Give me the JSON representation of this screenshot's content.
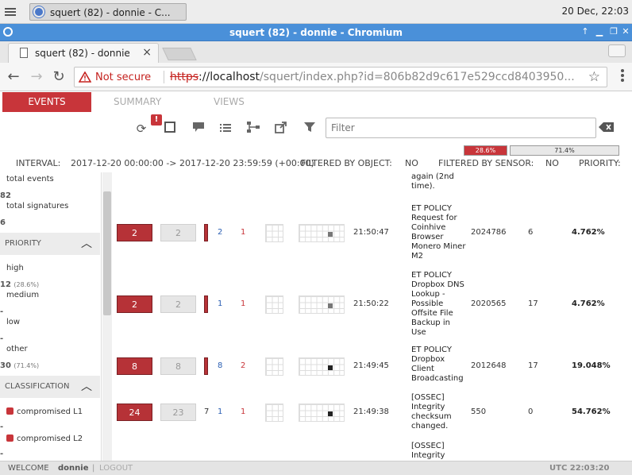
{
  "os": {
    "task_title": "squert (82) - donnie - C...",
    "clock": "20 Dec, 22:03"
  },
  "window": {
    "title": "squert (82) - donnie - Chromium"
  },
  "browser": {
    "tab_title": "squert (82) - donnie",
    "security": "Not secure",
    "url_scheme": "https",
    "url_host": "://localhost",
    "url_path": "/squert/index.php?id=806b82d9c617e529ccd8403950..."
  },
  "app": {
    "tabs": [
      "EVENTS",
      "SUMMARY",
      "VIEWS"
    ],
    "badge": "!",
    "filter_placeholder": "Filter",
    "priority_bars": {
      "high_label": "28.6%",
      "other_label": "71.4%",
      "high_fraction": 0.286,
      "other_fraction": 0.714
    },
    "interval_label": "INTERVAL:",
    "interval_value": "2017-12-20 00:00:00 -> 2017-12-20 23:59:59 (+00:00)",
    "filtered_object_label": "FILTERED BY OBJECT:",
    "filtered_object_value": "NO",
    "filtered_sensor_label": "FILTERED BY SENSOR:",
    "filtered_sensor_value": "NO",
    "priority_label": "PRIORITY:"
  },
  "sidebar": {
    "total_events_label": "total events",
    "total_events_value": "82",
    "total_signatures_label": "total signatures",
    "total_signatures_value": "6",
    "priority_header": "PRIORITY",
    "high_label": "high",
    "high_value": "12",
    "high_pct": "(28.6%)",
    "medium_label": "medium",
    "medium_value": "-",
    "low_label": "low",
    "low_value": "-",
    "other_label": "other",
    "other_value": "30",
    "other_pct": "(71.4%)",
    "classification_header": "CLASSIFICATION",
    "class_items": [
      "compromised L1",
      "compromised L2"
    ],
    "class_values": [
      "-",
      "-"
    ]
  },
  "table": {
    "partial_top": "again (2nd time).",
    "rows": [
      {
        "count": "2",
        "count2": "2",
        "src": "2",
        "dst": "1",
        "time": "21:50:47",
        "sig": "ET POLICY Request for Coinhive Browser Monero Miner M2",
        "sid": "2024786",
        "cnt": "6",
        "pct": "4.762%",
        "mark_color": "#777777"
      },
      {
        "count": "2",
        "count2": "2",
        "src": "1",
        "dst": "1",
        "time": "21:50:22",
        "sig": "ET POLICY Dropbox DNS Lookup - Possible Offsite File Backup in Use",
        "sid": "2020565",
        "cnt": "17",
        "pct": "4.762%",
        "mark_color": "#777777"
      },
      {
        "count": "8",
        "count2": "8",
        "src": "8",
        "dst": "2",
        "time": "21:49:45",
        "sig": "ET POLICY Dropbox Client Broadcasting",
        "sid": "2012648",
        "cnt": "17",
        "pct": "19.048%",
        "mark_color": "#222222"
      },
      {
        "count": "24",
        "count2": "23",
        "extra": "7",
        "src": "1",
        "dst": "1",
        "time": "21:49:38",
        "sig": "[OSSEC] Integrity checksum changed.",
        "sid": "550",
        "cnt": "0",
        "pct": "54.762%",
        "mark_color": "#222222"
      }
    ],
    "partial_bottom": "[OSSEC] Integrity"
  },
  "status": {
    "welcome": "WELCOME",
    "user": "donnie",
    "logout": "LOGOUT",
    "utc": "UTC 22:03:20"
  }
}
